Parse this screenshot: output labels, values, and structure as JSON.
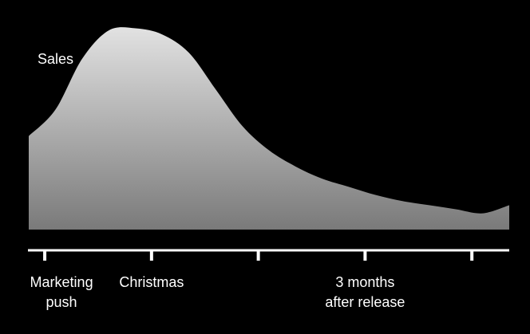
{
  "chart_data": {
    "type": "area",
    "ylabel": "Sales",
    "x": [
      0,
      0.25,
      0.5,
      0.75,
      1,
      1.25,
      1.5,
      1.75,
      2,
      2.25,
      2.5,
      2.75,
      3,
      3.25,
      3.5,
      3.75,
      4,
      4.25,
      4.5
    ],
    "values": [
      0.46,
      0.59,
      0.84,
      0.98,
      0.99,
      0.96,
      0.87,
      0.69,
      0.51,
      0.39,
      0.31,
      0.25,
      0.21,
      0.17,
      0.14,
      0.12,
      0.1,
      0.08,
      0.12
    ],
    "ylim": [
      0,
      1
    ],
    "xlim": [
      0,
      4.5
    ],
    "ticks": [
      0.15,
      1.15,
      2.15,
      3.15,
      4.15
    ],
    "tick_labels": [
      {
        "lines": [
          "Marketing",
          "push"
        ],
        "x": 0.15
      },
      {
        "lines": [
          "Christmas"
        ],
        "x": 1.15
      },
      {
        "lines": [
          "3 months",
          "after release"
        ],
        "x": 3.15
      }
    ],
    "grid": false,
    "colors": {
      "background": "#000000",
      "fill_top": "#e2e2e2",
      "fill_bottom": "#7a7a7a",
      "axis": "#ffffff",
      "text": "#ffffff"
    }
  }
}
